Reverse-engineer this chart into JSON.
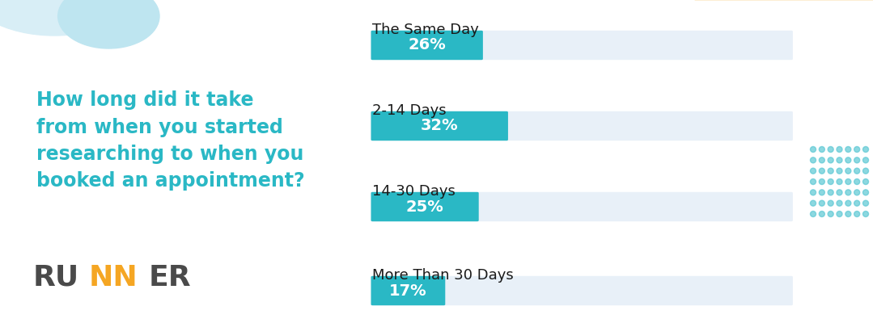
{
  "categories": [
    "The Same Day",
    "2-14 Days",
    "14-30 Days",
    "More Than 30 Days"
  ],
  "values": [
    26,
    32,
    25,
    17
  ],
  "labels": [
    "26%",
    "32%",
    "25%",
    "17%"
  ],
  "bar_color": "#2ab8c5",
  "bg_bar_color": "#e8f0f8",
  "label_color": "#ffffff",
  "category_color": "#1a1a1a",
  "question_color": "#2ab8c5",
  "question_text": "How long did it take\nfrom when you started\nresearching to when you\nbooked an appointment?",
  "question_fontsize": 17,
  "category_fontsize": 13,
  "label_fontsize": 14,
  "fig_bg": "#ffffff",
  "runner_dark": "#4a4a4a",
  "runner_orange": "#f5a623",
  "blob_color1": "#d8eef6",
  "blob_color2": "#bee5f0",
  "deco_peach": "#fce8c0",
  "deco_teal_line": "#2ab8c5",
  "deco_dot": "#5cc8d4"
}
